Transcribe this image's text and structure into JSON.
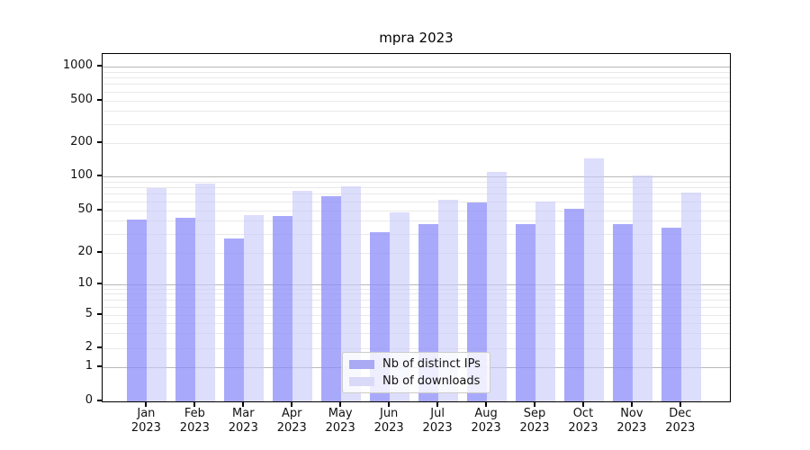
{
  "chart_data": {
    "type": "bar",
    "title": "mpra 2023",
    "categories": [
      "Jan 2023",
      "Feb 2023",
      "Mar 2023",
      "Apr 2023",
      "May 2023",
      "Jun 2023",
      "Jul 2023",
      "Aug 2023",
      "Sep 2023",
      "Oct 2023",
      "Nov 2023",
      "Dec 2023"
    ],
    "series": [
      {
        "name": "Nb of distinct IPs",
        "values": [
          41,
          42,
          27,
          44,
          66,
          31,
          37,
          58,
          37,
          51,
          37,
          34
        ],
        "bar_color": "rgba(140,140,250,0.75)",
        "legend_color": "#a9a9f4"
      },
      {
        "name": "Nb of downloads",
        "values": [
          78,
          87,
          45,
          75,
          81,
          48,
          62,
          110,
          60,
          147,
          101,
          72
        ],
        "bar_color": "rgba(200,200,250,0.62)",
        "legend_color": "#d9d9f8"
      }
    ],
    "y_axis": {
      "scale": "symlog",
      "ticks": [
        0,
        1,
        2,
        5,
        10,
        20,
        50,
        100,
        200,
        500,
        1000
      ],
      "major_gridlines": [
        1,
        10,
        100,
        1000
      ],
      "minor_gridlines": [
        3,
        4,
        6,
        7,
        8,
        9,
        30,
        40,
        60,
        70,
        80,
        90,
        300,
        400,
        600,
        700,
        800,
        900
      ],
      "ylim": [
        0,
        1500
      ]
    },
    "legend_position": "lower center inside",
    "grid": true,
    "colors": {
      "major_grid": "#b9b9b9",
      "minor_grid": "#e9e9e9",
      "axis": "#000000",
      "text": "#111111"
    }
  }
}
